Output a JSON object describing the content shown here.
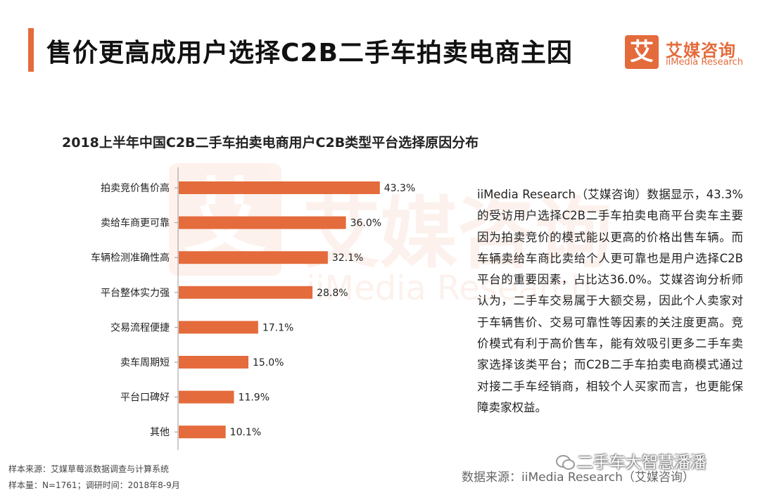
{
  "header": {
    "title": "售价更高成用户选择C2B二手车拍卖电商主因",
    "logo_glyph": "艾",
    "logo_cn": "艾媒咨询",
    "logo_en": "iiMedia Research",
    "accent_color": "#e46b3c"
  },
  "watermark": {
    "glyph": "艾",
    "cn": "艾媒咨询",
    "en": "iiMedia Research"
  },
  "chart_data": {
    "type": "bar",
    "orientation": "horizontal",
    "title": "2018上半年中国C2B二手车拍卖电商用户C2B类型平台选择原因分布",
    "categories": [
      "拍卖竞价售价高",
      "卖给车商更可靠",
      "车辆检测准确性高",
      "平台整体实力强",
      "交易流程便捷",
      "卖车周期短",
      "平台口碑好",
      "其他"
    ],
    "values": [
      43.3,
      36.0,
      32.1,
      28.8,
      17.1,
      15.0,
      11.9,
      10.1
    ],
    "labels": [
      "43.3%",
      "36.0%",
      "32.1%",
      "28.8%",
      "17.1%",
      "15.0%",
      "11.9%",
      "10.1%"
    ],
    "unit": "%",
    "xlim": [
      0,
      50
    ],
    "bar_color": "#e46b3c",
    "grid": false,
    "legend": "none"
  },
  "analysis_text": "iiMedia Research（艾媒咨询）数据显示，43.3%的受访用户选择C2B二手车拍卖电商平台卖车主要因为拍卖竞价的模式能以更高的价格出售车辆。而车辆卖给车商比卖给个人更可靠也是用户选择C2B平台的重要因素，占比达36.0%。艾媒咨询分析师认为，二手车交易属于大额交易，因此个人卖家对于车辆售价、交易可靠性等因素的关注度更高。竞价模式有利于高价售车，能有效吸引更多二手车卖家选择该类平台；而C2B二手车拍卖电商模式通过对接二手车经销商，相较个人买家而言，也更能保障卖家权益。",
  "footer": {
    "sample_source": "样本来源：艾媒草莓派数据调查与计算系统",
    "sample_size": "样本量：N=1761；调研时间：2018年8-9月",
    "data_source": "数据来源：iiMedia Research（艾媒咨询）",
    "wechat_account": "二手车大智慧潘潘"
  }
}
